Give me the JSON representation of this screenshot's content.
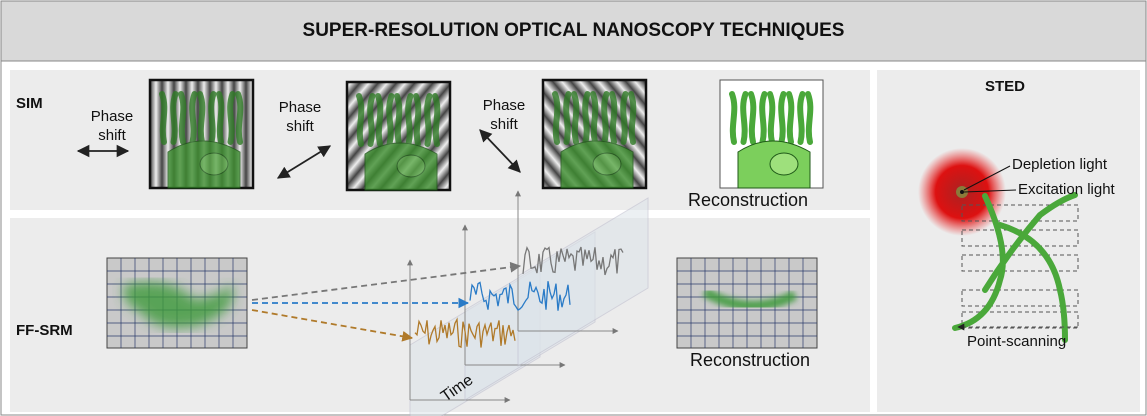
{
  "header": {
    "title": "SUPER-RESOLUTION OPTICAL NANOSCOPY TECHNIQUES"
  },
  "sim": {
    "label": "SIM",
    "phase_shifts": [
      "Phase shift",
      "Phase shift",
      "Phase shift"
    ],
    "reconstruction": "Reconstruction"
  },
  "ff_srm": {
    "label": "FF-SRM",
    "time_axis": "Time",
    "reconstruction": "Reconstruction"
  },
  "sted": {
    "label": "STED",
    "depletion": "Depletion light",
    "excitation": "Excitation light",
    "scanning": "Point-scanning"
  }
}
